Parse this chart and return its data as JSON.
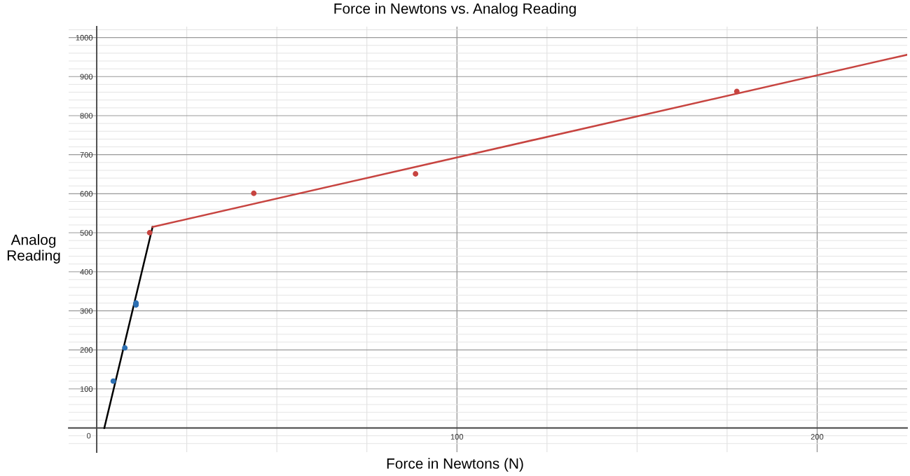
{
  "chart_data": {
    "type": "scatter",
    "title": "Force in Newtons vs. Analog Reading",
    "xlabel": "Force in Newtons (N)",
    "ylabel": "Analog\nReading",
    "series": [
      {
        "marker": "circle",
        "color": "#2d70b3",
        "x": [
          4.6,
          7.8,
          10.9,
          10.9
        ],
        "values": [
          120,
          205,
          320,
          315
        ]
      },
      {
        "marker": "circle",
        "color": "#c74440",
        "x": [
          14.7,
          43.6,
          88.5,
          177.7
        ],
        "values": [
          500,
          601,
          651,
          862
        ]
      },
      {
        "type": "line",
        "marker": "none",
        "color": "#000000",
        "x": [
          2.1,
          15.5
        ],
        "values": [
          0,
          515
        ]
      },
      {
        "type": "line",
        "marker": "none",
        "color": "#c74440",
        "x": [
          15.5,
          225
        ],
        "values": [
          515,
          956
        ]
      }
    ],
    "xlim": [
      -7.8,
      225
    ],
    "ylim": [
      -62,
      1028
    ],
    "xticks": [
      {
        "value": 0,
        "label": "0"
      },
      {
        "value": 25,
        "label": null
      },
      {
        "value": 50,
        "label": null
      },
      {
        "value": 75,
        "label": null
      },
      100,
      {
        "value": 125,
        "label": null
      },
      {
        "value": 150,
        "label": null
      },
      {
        "value": 175,
        "label": null
      },
      200
    ],
    "yticks": [
      {
        "value": -40,
        "label": null
      },
      {
        "value": -20,
        "label": null
      },
      {
        "value": 0,
        "label": null
      },
      {
        "value": 20,
        "label": null
      },
      {
        "value": 40,
        "label": null
      },
      {
        "value": 60,
        "label": null
      },
      {
        "value": 80,
        "label": null
      },
      100,
      {
        "value": 120,
        "label": null
      },
      {
        "value": 140,
        "label": null
      },
      {
        "value": 160,
        "label": null
      },
      {
        "value": 180,
        "label": null
      },
      200,
      {
        "value": 220,
        "label": null
      },
      {
        "value": 240,
        "label": null
      },
      {
        "value": 260,
        "label": null
      },
      {
        "value": 280,
        "label": null
      },
      300,
      {
        "value": 320,
        "label": null
      },
      {
        "value": 340,
        "label": null
      },
      {
        "value": 360,
        "label": null
      },
      {
        "value": 380,
        "label": null
      },
      400,
      {
        "value": 420,
        "label": null
      },
      {
        "value": 440,
        "label": null
      },
      {
        "value": 460,
        "label": null
      },
      {
        "value": 480,
        "label": null
      },
      500,
      {
        "value": 520,
        "label": null
      },
      {
        "value": 540,
        "label": null
      },
      {
        "value": 560,
        "label": null
      },
      {
        "value": 580,
        "label": null
      },
      600,
      {
        "value": 620,
        "label": null
      },
      {
        "value": 640,
        "label": null
      },
      {
        "value": 660,
        "label": null
      },
      {
        "value": 680,
        "label": null
      },
      700,
      {
        "value": 720,
        "label": null
      },
      {
        "value": 740,
        "label": null
      },
      {
        "value": 760,
        "label": null
      },
      {
        "value": 780,
        "label": null
      },
      800,
      {
        "value": 820,
        "label": null
      },
      {
        "value": 840,
        "label": null
      },
      {
        "value": 860,
        "label": null
      },
      {
        "value": 880,
        "label": null
      },
      900,
      {
        "value": 920,
        "label": null
      },
      {
        "value": 940,
        "label": null
      },
      {
        "value": 960,
        "label": null
      },
      {
        "value": 980,
        "label": null
      },
      1000,
      {
        "value": 1020,
        "label": null
      }
    ],
    "grid": true
  }
}
